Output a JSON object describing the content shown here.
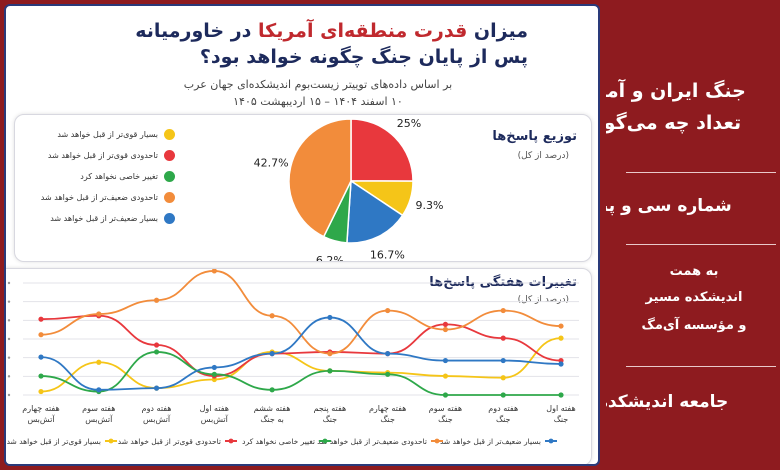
{
  "header": {
    "title_part1": "میزان",
    "title_highlight": "قدرت منطقه‌ای آمریکا",
    "title_part2": "در خاورمیانه",
    "title_line2": "پس از پایان جنگ چگونه خواهد بود؟",
    "subtitle_line1": "بر اساس داده‌های توییتر زیست‌بوم اندیشکده‌ای جهان عرب",
    "subtitle_line2": "۱۰ اسفند ۱۴۰۴ – ۱۵ اردیبهشت ۱۴۰۵"
  },
  "colors": {
    "much_stronger": "#f5c518",
    "stronger": "#e8383d",
    "no_change": "#2ea84a",
    "weaker": "#f28c3b",
    "much_weaker": "#2f78c4",
    "sidebar_bg": "#8e1b1f",
    "title": "#1d2a5c"
  },
  "sidebar": {
    "line1": "جنگ ایران و آمریکا؛",
    "line2": "تعداد چه می‌گویند؟",
    "issue": "شماره سی و پنجم",
    "by": "به همت",
    "org1": "اندیشکده مسیر",
    "org2": "و مؤسسه آی‌مگ",
    "footer": "جامعه اندیشکده‌ها"
  },
  "chart_data": [
    {
      "type": "pie",
      "title": "توزیع پاسخ‌ها",
      "subtitle": "(درصد از کل)",
      "slices": [
        {
          "label": "بسیار قوی‌تر از قبل خواهد شد",
          "value": 9.3,
          "value_label": "9.3%",
          "color": "#f5c518"
        },
        {
          "label": "تاحدودی قوی‌تر از قبل خواهد شد",
          "value": 25,
          "value_label": "25%",
          "color": "#e8383d"
        },
        {
          "label": "تغییر خاصی نخواهد کرد",
          "value": 6.2,
          "value_label": "6.2%",
          "color": "#2ea84a"
        },
        {
          "label": "تاحدودی ضعیف‌تر از قبل خواهد شد",
          "value": 42.7,
          "value_label": "42.7%",
          "color": "#f28c3b"
        },
        {
          "label": "بسیار ضعیف‌تر از قبل خواهد شد",
          "value": 16.7,
          "value_label": "16.7%",
          "color": "#2f78c4"
        }
      ]
    },
    {
      "type": "line",
      "title": "تغییرات هفتگی پاسخ‌ها",
      "subtitle": "(درصد از کل)",
      "categories": [
        [
          "هفته اول",
          "جنگ"
        ],
        [
          "هفته دوم",
          "جنگ"
        ],
        [
          "هفته سوم",
          "جنگ"
        ],
        [
          "هفته چهارم",
          "جنگ"
        ],
        [
          "هفته پنجم",
          "جنگ"
        ],
        [
          "هفته ششم",
          "به جنگ"
        ],
        [
          "هفته اول",
          "آتش‌بس"
        ],
        [
          "هفته دوم",
          "آتش‌بس"
        ],
        [
          "هفته سوم",
          "آتش‌بس"
        ],
        [
          "هفته چهارم",
          "آتش‌بس"
        ]
      ],
      "ylim": [
        0,
        65
      ],
      "series": [
        {
          "name": "بسیار قوی‌تر از قبل خواهد شد",
          "color": "#f5c518",
          "values": [
            33,
            10,
            11,
            13,
            14,
            25,
            9,
            4,
            19,
            2
          ]
        },
        {
          "name": "تاحدودی قوی‌تر از قبل خواهد شد",
          "color": "#e8383d",
          "values": [
            20,
            33,
            41,
            24,
            25,
            24,
            11,
            29,
            46,
            44
          ]
        },
        {
          "name": "تغییر خاصی نخواهد کرد",
          "color": "#2ea84a",
          "values": [
            0,
            0,
            0,
            12,
            14,
            3,
            12,
            25,
            2,
            11
          ]
        },
        {
          "name": "تاحدودی ضعیف‌تر از قبل خواهد شد",
          "color": "#f28c3b",
          "values": [
            40,
            49,
            38,
            49,
            24,
            46,
            72,
            55,
            47,
            35
          ]
        },
        {
          "name": "بسیار ضعیف‌تر از قبل خواهد شد",
          "color": "#2f78c4",
          "values": [
            18,
            20,
            20,
            24,
            45,
            24,
            16,
            4,
            3,
            22
          ]
        }
      ]
    }
  ]
}
